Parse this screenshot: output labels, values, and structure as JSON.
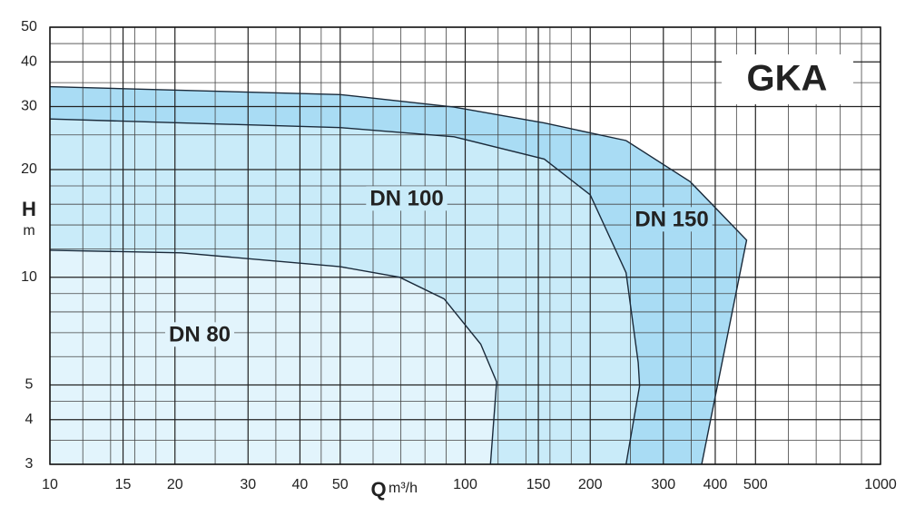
{
  "chart_data": {
    "type": "area",
    "title": "GKA",
    "x_label": "Q",
    "x_unit": "m³/h",
    "y_label": "H",
    "y_unit": "m",
    "log_x": true,
    "log_y": true,
    "grid": true,
    "xlim": [
      10,
      1000
    ],
    "ylim": [
      3,
      50
    ],
    "xticks": [
      10,
      15,
      20,
      30,
      40,
      50,
      100,
      150,
      200,
      300,
      400,
      500,
      1000
    ],
    "yticks": [
      3,
      4,
      5,
      10,
      20,
      30,
      40,
      50
    ],
    "xminorticks": [
      12,
      14,
      16,
      18,
      25,
      35,
      45,
      60,
      70,
      80,
      90,
      120,
      140,
      160,
      180,
      250,
      350,
      450,
      600,
      700,
      800,
      900
    ],
    "yminorticks": [
      3.5,
      4.5,
      6,
      7,
      8,
      9,
      12,
      14,
      16,
      18,
      25,
      35,
      45
    ],
    "series": [
      {
        "name": "DN 150",
        "color": "#a9dcf4",
        "x": [
          10,
          50,
          94,
          155,
          244,
          348,
          476,
          371
        ],
        "values": [
          34.1,
          32.4,
          29.9,
          27.0,
          24.1,
          18.5,
          12.7,
          3
        ]
      },
      {
        "name": "DN 100",
        "color": "#c9ebf9",
        "x": [
          10,
          50,
          94,
          155,
          200,
          244,
          261,
          263,
          244
        ],
        "values": [
          27.7,
          26.2,
          24.7,
          21.4,
          17.0,
          10.3,
          5.77,
          4.97,
          3
        ]
      },
      {
        "name": "DN 80",
        "color": "#e2f4fc",
        "x": [
          10,
          20.7,
          50,
          69.5,
          89,
          109,
          119,
          115
        ],
        "values": [
          11.9,
          11.7,
          10.7,
          10.0,
          8.7,
          6.5,
          5.1,
          3
        ]
      }
    ]
  }
}
